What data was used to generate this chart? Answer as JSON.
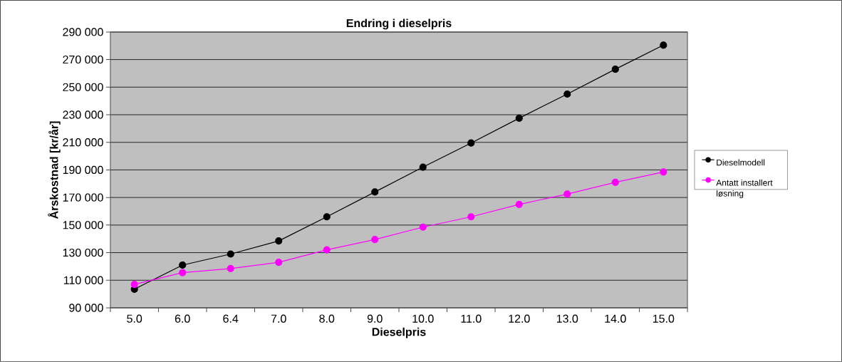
{
  "chart_data": {
    "type": "line",
    "title": "Endring i dieselpris",
    "xlabel": "Dieselpris",
    "ylabel": "Årskostnad [kr/år]",
    "categories": [
      "5.0",
      "6.0",
      "6.4",
      "7.0",
      "8.0",
      "9.0",
      "10.0",
      "11.0",
      "12.0",
      "13.0",
      "14.0",
      "15.0"
    ],
    "series": [
      {
        "name": "Dieselmodell",
        "color": "#000000",
        "values": [
          103500,
          121000,
          129000,
          138500,
          156000,
          174000,
          192000,
          209500,
          227500,
          245000,
          263000,
          280500
        ]
      },
      {
        "name": "Antatt installert løsning",
        "color": "#ff00ff",
        "values": [
          107000,
          115500,
          118500,
          123000,
          132000,
          139500,
          148500,
          156000,
          165000,
          172500,
          181000,
          188500
        ]
      }
    ],
    "ylim": [
      90000,
      290000
    ],
    "yticks": [
      {
        "value": 90000,
        "label": "90 000"
      },
      {
        "value": 110000,
        "label": "110 000"
      },
      {
        "value": 130000,
        "label": "130 000"
      },
      {
        "value": 150000,
        "label": "150 000"
      },
      {
        "value": 170000,
        "label": "170 000"
      },
      {
        "value": 190000,
        "label": "190 000"
      },
      {
        "value": 210000,
        "label": "210 000"
      },
      {
        "value": 230000,
        "label": "230 000"
      },
      {
        "value": 250000,
        "label": "250 000"
      },
      {
        "value": 270000,
        "label": "270 000"
      },
      {
        "value": 290000,
        "label": "290 000"
      }
    ],
    "grid": "y",
    "legend": "right",
    "marker": "circle",
    "line_style": "solid"
  }
}
